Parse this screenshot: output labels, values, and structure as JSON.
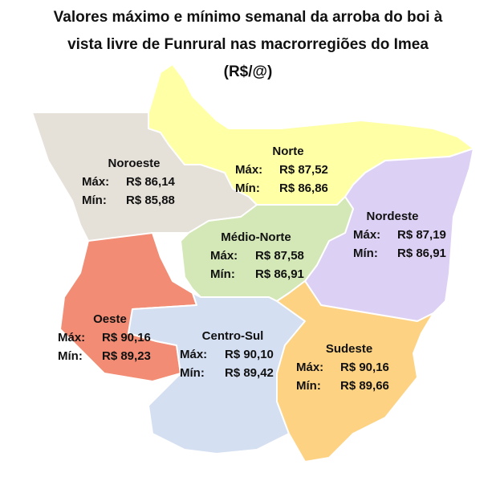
{
  "title_lines": [
    "Valores máximo e mínimo semanal da arroba do boi à",
    "vista livre de Funrural nas macrorregiões do Imea",
    "(R$/@)"
  ],
  "regions": [
    {
      "name": "Noroeste",
      "max_label": "Máx:",
      "max": "R$ 86,14",
      "min_label": "Mín:",
      "min": "R$ 85,88"
    },
    {
      "name": "Norte",
      "max_label": "Máx:",
      "max": "R$ 87,52",
      "min_label": "Mín:",
      "min": "R$ 86,86"
    },
    {
      "name": "Nordeste",
      "max_label": "Máx:",
      "max": "R$ 87,19",
      "min_label": "Mín:",
      "min": "R$ 86,91"
    },
    {
      "name": "Médio-Norte",
      "max_label": "Máx:",
      "max": "R$ 87,58",
      "min_label": "Mín:",
      "min": "R$ 86,91"
    },
    {
      "name": "Oeste",
      "max_label": "Máx:",
      "max": "R$ 90,16",
      "min_label": "Mín:",
      "min": "R$ 89,23"
    },
    {
      "name": "Centro-Sul",
      "max_label": "Máx:",
      "max": "R$ 90,10",
      "min_label": "Mín:",
      "min": "R$ 89,42"
    },
    {
      "name": "Sudeste",
      "max_label": "Máx:",
      "max": "R$ 90,16",
      "min_label": "Mín:",
      "min": "R$ 89,66"
    }
  ]
}
